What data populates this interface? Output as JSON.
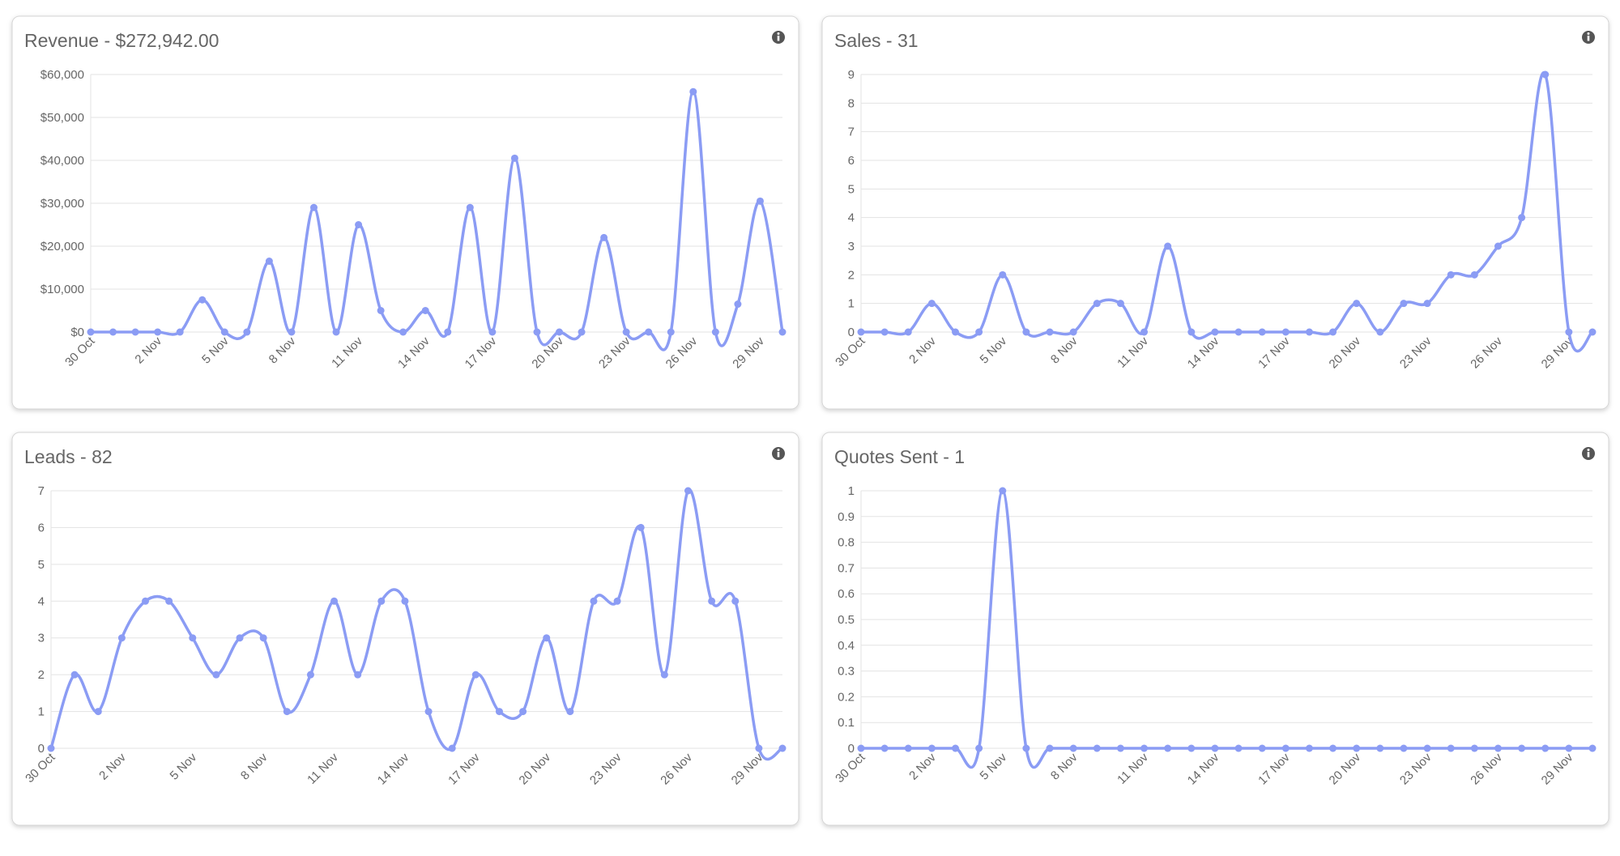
{
  "chart_data": [
    {
      "type": "line",
      "title": "Revenue - $272,942.00",
      "categories": [
        "30 Oct",
        null,
        null,
        "2 Nov",
        null,
        null,
        "5 Nov",
        null,
        null,
        "8 Nov",
        null,
        null,
        "11 Nov",
        null,
        null,
        "14 Nov",
        null,
        null,
        "17 Nov",
        null,
        null,
        "20 Nov",
        null,
        null,
        "23 Nov",
        null,
        null,
        "26 Nov",
        null,
        null,
        "29 Nov",
        null
      ],
      "series": [
        {
          "name": "Revenue",
          "color": "#8b9cf4",
          "values": [
            0,
            0,
            0,
            0,
            0,
            7500,
            0,
            0,
            16500,
            0,
            29000,
            0,
            25000,
            5000,
            0,
            5000,
            0,
            29000,
            0,
            40500,
            0,
            0,
            0,
            22000,
            0,
            0,
            0,
            56000,
            0,
            6500,
            30500,
            0
          ]
        }
      ],
      "ylim": [
        0,
        60000
      ],
      "yticks": [
        {
          "value": 0,
          "label": "$0"
        },
        {
          "value": 10000,
          "label": "$10,000"
        },
        {
          "value": 20000,
          "label": "$20,000"
        },
        {
          "value": 30000,
          "label": "$30,000"
        },
        {
          "value": 40000,
          "label": "$40,000"
        },
        {
          "value": 50000,
          "label": "$50,000"
        },
        {
          "value": 60000,
          "label": "$60,000"
        }
      ],
      "grid": true
    },
    {
      "type": "line",
      "title": "Sales - 31",
      "categories": [
        "30 Oct",
        null,
        null,
        "2 Nov",
        null,
        null,
        "5 Nov",
        null,
        null,
        "8 Nov",
        null,
        null,
        "11 Nov",
        null,
        null,
        "14 Nov",
        null,
        null,
        "17 Nov",
        null,
        null,
        "20 Nov",
        null,
        null,
        "23 Nov",
        null,
        null,
        "26 Nov",
        null,
        null,
        "29 Nov",
        null
      ],
      "series": [
        {
          "name": "Sales",
          "color": "#8b9cf4",
          "values": [
            0,
            0,
            0,
            1,
            0,
            0,
            2,
            0,
            0,
            0,
            1,
            1,
            0,
            3,
            0,
            0,
            0,
            0,
            0,
            0,
            0,
            1,
            0,
            1,
            1,
            2,
            2,
            3,
            4,
            9,
            0,
            0
          ]
        }
      ],
      "ylim": [
        0,
        9
      ],
      "yticks": [
        0,
        1,
        2,
        3,
        4,
        5,
        6,
        7,
        8,
        9
      ],
      "grid": true
    },
    {
      "type": "line",
      "title": "Leads - 82",
      "categories": [
        "30 Oct",
        null,
        null,
        "2 Nov",
        null,
        null,
        "5 Nov",
        null,
        null,
        "8 Nov",
        null,
        null,
        "11 Nov",
        null,
        null,
        "14 Nov",
        null,
        null,
        "17 Nov",
        null,
        null,
        "20 Nov",
        null,
        null,
        "23 Nov",
        null,
        null,
        "26 Nov",
        null,
        null,
        "29 Nov",
        null
      ],
      "series": [
        {
          "name": "Leads",
          "color": "#8b9cf4",
          "values": [
            0,
            2,
            1,
            3,
            4,
            4,
            3,
            2,
            3,
            3,
            1,
            2,
            4,
            2,
            4,
            4,
            1,
            0,
            2,
            1,
            1,
            3,
            1,
            4,
            4,
            6,
            2,
            7,
            4,
            4,
            0,
            0
          ]
        }
      ],
      "ylim": [
        0,
        7
      ],
      "yticks": [
        0,
        1,
        2,
        3,
        4,
        5,
        6,
        7
      ],
      "grid": true
    },
    {
      "type": "line",
      "title": "Quotes Sent - 1",
      "categories": [
        "30 Oct",
        null,
        null,
        "2 Nov",
        null,
        null,
        "5 Nov",
        null,
        null,
        "8 Nov",
        null,
        null,
        "11 Nov",
        null,
        null,
        "14 Nov",
        null,
        null,
        "17 Nov",
        null,
        null,
        "20 Nov",
        null,
        null,
        "23 Nov",
        null,
        null,
        "26 Nov",
        null,
        null,
        "29 Nov",
        null
      ],
      "series": [
        {
          "name": "Quotes Sent",
          "color": "#8b9cf4",
          "values": [
            0,
            0,
            0,
            0,
            0,
            0,
            1,
            0,
            0,
            0,
            0,
            0,
            0,
            0,
            0,
            0,
            0,
            0,
            0,
            0,
            0,
            0,
            0,
            0,
            0,
            0,
            0,
            0,
            0,
            0,
            0,
            0
          ]
        }
      ],
      "ylim": [
        0,
        1
      ],
      "yticks": [
        0,
        0.1,
        0.2,
        0.3,
        0.4,
        0.5,
        0.6,
        0.7,
        0.8,
        0.9,
        1
      ],
      "grid": true
    }
  ]
}
